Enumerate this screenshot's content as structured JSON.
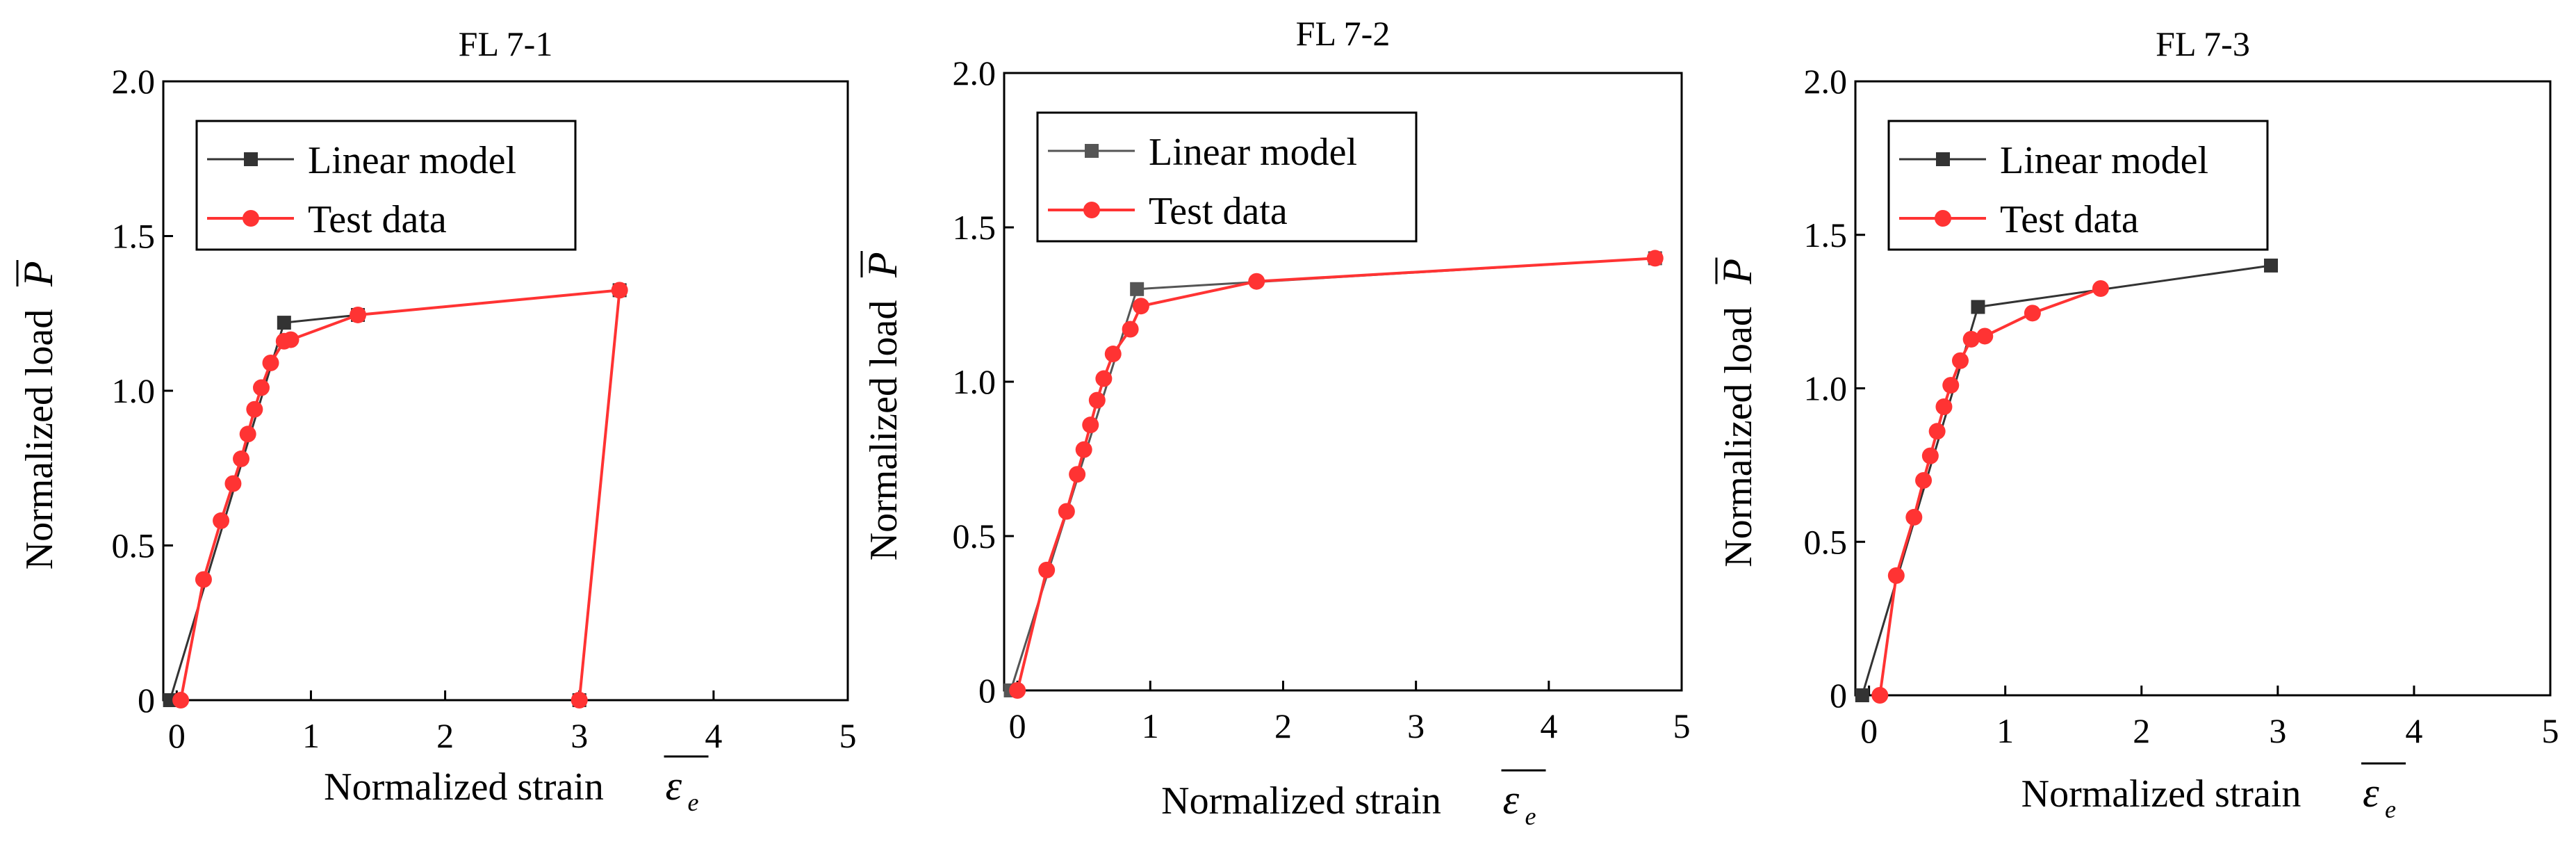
{
  "chart_data": [
    {
      "type": "line",
      "title": "FL 7-1",
      "xlabel": "Normalized strain",
      "xsymbol": "ε",
      "xsubscript": "e",
      "ylabel": "Normalized load",
      "ysymbol": "P",
      "xlim": [
        -0.1,
        5
      ],
      "ylim": [
        0,
        2.0
      ],
      "xticks": [
        0,
        1,
        2,
        3,
        4,
        5
      ],
      "xtick_labels": [
        "0",
        "1",
        "2",
        "3",
        "4",
        "5"
      ],
      "yticks": [
        0,
        0.5,
        1.0,
        1.5,
        2.0
      ],
      "ytick_labels": [
        "0",
        "0.5",
        "1.0",
        "1.5",
        "2.0"
      ],
      "legend_position": "top-left",
      "series": [
        {
          "name": "Linear model",
          "color": "#333333",
          "marker": "square",
          "x": [
            -0.05,
            0.8,
            1.35,
            3.3,
            3.0
          ],
          "y": [
            0,
            1.22,
            1.245,
            1.325,
            0
          ]
        },
        {
          "name": "Test data",
          "color": "#ff3333",
          "marker": "circle",
          "x": [
            0.03,
            0.2,
            0.33,
            0.42,
            0.48,
            0.53,
            0.58,
            0.63,
            0.7,
            0.8,
            0.85,
            1.35,
            3.3,
            3.0
          ],
          "y": [
            0,
            0.39,
            0.58,
            0.7,
            0.78,
            0.86,
            0.94,
            1.01,
            1.09,
            1.16,
            1.165,
            1.245,
            1.325,
            0
          ]
        }
      ]
    },
    {
      "type": "line",
      "title": "FL 7-2",
      "xlabel": "Normalized strain",
      "xsymbol": "ε",
      "xsubscript": "e",
      "ylabel": "Normalized load",
      "ysymbol": "P",
      "xlim": [
        -0.1,
        5
      ],
      "ylim": [
        0,
        2.0
      ],
      "xticks": [
        0,
        1,
        2,
        3,
        4,
        5
      ],
      "xtick_labels": [
        "0",
        "1",
        "2",
        "3",
        "4",
        "5"
      ],
      "yticks": [
        0,
        0.5,
        1.0,
        1.5,
        2.0
      ],
      "ytick_labels": [
        "0",
        "0.5",
        "1.0",
        "1.5",
        "2.0"
      ],
      "legend_position": "top-left",
      "series": [
        {
          "name": "Linear model",
          "color": "#555555",
          "marker": "square",
          "x": [
            -0.05,
            0.9,
            4.8
          ],
          "y": [
            0,
            1.3,
            1.4
          ]
        },
        {
          "name": "Test data",
          "color": "#ff3333",
          "marker": "circle",
          "x": [
            0.0,
            0.22,
            0.37,
            0.45,
            0.5,
            0.55,
            0.6,
            0.65,
            0.72,
            0.85,
            0.93,
            1.8,
            4.8
          ],
          "y": [
            0,
            0.39,
            0.58,
            0.7,
            0.78,
            0.86,
            0.94,
            1.01,
            1.09,
            1.17,
            1.245,
            1.325,
            1.4
          ]
        }
      ]
    },
    {
      "type": "line",
      "title": "FL 7-3",
      "xlabel": "Normalized strain",
      "xsymbol": "ε",
      "xsubscript": "e",
      "ylabel": "Normalized load",
      "ysymbol": "P",
      "xlim": [
        -0.1,
        5
      ],
      "ylim": [
        0,
        2.0
      ],
      "xticks": [
        0,
        1,
        2,
        3,
        4,
        5
      ],
      "xtick_labels": [
        "0",
        "1",
        "2",
        "3",
        "4",
        "5"
      ],
      "yticks": [
        0,
        0.5,
        1.0,
        1.5,
        2.0
      ],
      "ytick_labels": [
        "0",
        "0.5",
        "1.0",
        "1.5",
        "2.0"
      ],
      "legend_position": "top-left",
      "series": [
        {
          "name": "Linear model",
          "color": "#333333",
          "marker": "square",
          "x": [
            -0.05,
            0.8,
            2.95
          ],
          "y": [
            0,
            1.265,
            1.4
          ]
        },
        {
          "name": "Test data",
          "color": "#ff3333",
          "marker": "circle",
          "x": [
            0.08,
            0.2,
            0.33,
            0.4,
            0.45,
            0.5,
            0.55,
            0.6,
            0.67,
            0.75,
            0.85,
            1.2,
            1.7
          ],
          "y": [
            0,
            0.39,
            0.58,
            0.7,
            0.78,
            0.86,
            0.94,
            1.01,
            1.09,
            1.16,
            1.17,
            1.245,
            1.325
          ]
        }
      ]
    }
  ]
}
